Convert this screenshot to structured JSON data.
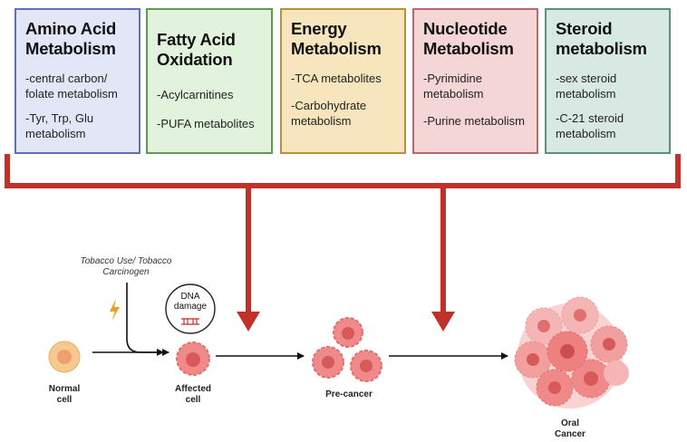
{
  "categories": [
    {
      "title": [
        "Amino Acid",
        "Metabolism"
      ],
      "items": [
        [
          "-central carbon/",
          "folate metabolism"
        ],
        [
          "-Tyr, Trp, Glu",
          "metabolism"
        ]
      ]
    },
    {
      "title": [
        "Fatty Acid",
        "Oxidation"
      ],
      "items": [
        [
          "-Acylcarnitines"
        ],
        [
          "-PUFA metabolites"
        ]
      ]
    },
    {
      "title": [
        "Energy",
        "Metabolism"
      ],
      "items": [
        [
          "-TCA metabolites"
        ],
        [
          "-Carbohydrate",
          "metabolism"
        ]
      ]
    },
    {
      "title": [
        "Nucleotide",
        "Metabolism"
      ],
      "items": [
        [
          "-Pyrimidine",
          "metabolism"
        ],
        [
          "-Purine metabolism"
        ]
      ]
    },
    {
      "title": [
        "Steroid",
        "metabolism"
      ],
      "items": [
        [
          "-sex steroid",
          "metabolism"
        ],
        [
          "-C-21 steroid",
          "metabolism"
        ]
      ]
    }
  ],
  "trigger": [
    "Tobacco Use/ Tobacco",
    "Carcinogen"
  ],
  "dna_bubble": [
    "DNA",
    "damage"
  ],
  "stages": {
    "normal": [
      "Normal",
      "cell"
    ],
    "affected": [
      "Affected",
      "cell"
    ],
    "precancer": [
      "Pre-cancer"
    ],
    "oral": [
      "Oral",
      "Cancer"
    ]
  },
  "colors": {
    "bracket": "#c0312b",
    "arrow": "#111111",
    "cell_fill": "#f08a8a",
    "cell_nucleus": "#d65a5a",
    "normal_fill": "#f6c98e"
  }
}
